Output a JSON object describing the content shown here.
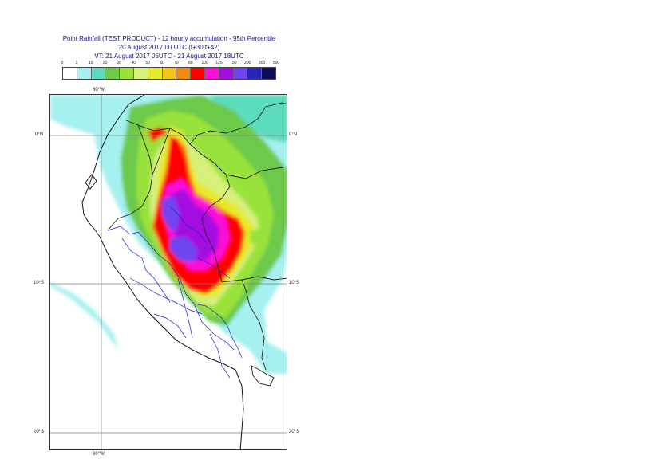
{
  "title": {
    "line1": "Point Rainfall (TEST PRODUCT) - 12 hourly accumulation - 95th Percentile",
    "line2": "20 August 2017 00 UTC (t+30,t+42)",
    "line3": "VT: 21 August 2017 06UTC - 21 August 2017 18UTC"
  },
  "legend": {
    "ticks": [
      "0",
      "1",
      "10",
      "20",
      "30",
      "40",
      "50",
      "60",
      "70",
      "80",
      "100",
      "125",
      "150",
      "200",
      "300",
      "500"
    ],
    "colors": [
      "#ffffff",
      "#a6f0ef",
      "#5bdcbc",
      "#6cc94a",
      "#99e23a",
      "#d6f07a",
      "#e8e82a",
      "#f5c418",
      "#f28a0e",
      "#ff0000",
      "#ff10d8",
      "#a40be0",
      "#6e45f0",
      "#2626b8",
      "#0d0d55"
    ]
  },
  "map": {
    "lat_labels": [
      "0°N",
      "10°S",
      "20°S"
    ],
    "lon_labels": [
      "80°W"
    ]
  }
}
